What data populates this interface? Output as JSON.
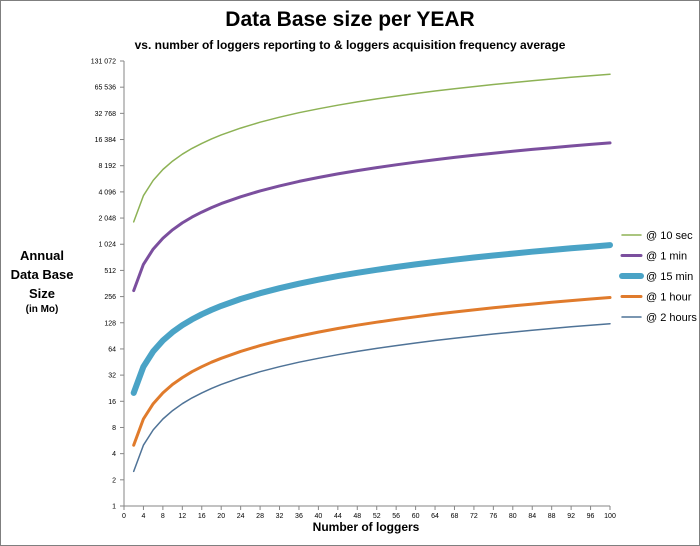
{
  "chart_data": {
    "type": "line",
    "title": "Data Base size per YEAR",
    "subtitle": "vs. number of loggers reporting to & loggers acquisition frequency average",
    "ylabel": "Annual Data Base Size",
    "ylabel_unit": "(in Mo)",
    "xlabel": "Number of loggers",
    "x_scale": "linear",
    "y_scale": "log2",
    "xlim": [
      0,
      100
    ],
    "ylim": [
      1,
      131072
    ],
    "x_ticks": [
      0,
      4,
      8,
      12,
      16,
      20,
      24,
      28,
      32,
      36,
      40,
      44,
      48,
      52,
      56,
      60,
      64,
      68,
      72,
      76,
      80,
      84,
      88,
      92,
      96,
      100
    ],
    "y_ticks": [
      {
        "value": 1,
        "label": "1"
      },
      {
        "value": 2,
        "label": "2"
      },
      {
        "value": 4,
        "label": "4"
      },
      {
        "value": 8,
        "label": "8"
      },
      {
        "value": 16,
        "label": "16"
      },
      {
        "value": 32,
        "label": "32"
      },
      {
        "value": 64,
        "label": "64"
      },
      {
        "value": 128,
        "label": "128"
      },
      {
        "value": 256,
        "label": "256"
      },
      {
        "value": 512,
        "label": "512"
      },
      {
        "value": 1024,
        "label": "1 024"
      },
      {
        "value": 2048,
        "label": "2 048"
      },
      {
        "value": 4096,
        "label": "4 096"
      },
      {
        "value": 8192,
        "label": "8 192"
      },
      {
        "value": 16384,
        "label": "16 384"
      },
      {
        "value": 32768,
        "label": "32 768"
      },
      {
        "value": 65536,
        "label": "65 536"
      },
      {
        "value": 131072,
        "label": "131 072"
      }
    ],
    "grid": false,
    "legend_position": "right",
    "x": [
      2,
      4,
      6,
      8,
      10,
      12,
      14,
      16,
      18,
      20,
      24,
      28,
      32,
      36,
      40,
      44,
      48,
      52,
      56,
      60,
      64,
      68,
      72,
      76,
      80,
      84,
      88,
      92,
      96,
      100
    ],
    "series": [
      {
        "name": "@ 10 sec",
        "color": "#8db255",
        "weight": "thin",
        "values": [
          1850,
          3700,
          5550,
          7400,
          9250,
          11100,
          12950,
          14800,
          16650,
          18500,
          22200,
          25900,
          29600,
          33300,
          37000,
          40700,
          44400,
          48100,
          51800,
          55500,
          59200,
          62900,
          66600,
          70300,
          74000,
          77700,
          81400,
          85100,
          88800,
          92500
        ]
      },
      {
        "name": "@ 1 min",
        "color": "#7b4f9e",
        "weight": "medium",
        "values": [
          300,
          600,
          900,
          1200,
          1500,
          1800,
          2100,
          2400,
          2700,
          3000,
          3600,
          4200,
          4800,
          5400,
          6000,
          6600,
          7200,
          7800,
          8400,
          9000,
          9600,
          10200,
          10800,
          11400,
          12000,
          12600,
          13200,
          13800,
          14400,
          15000
        ]
      },
      {
        "name": "@ 15 min",
        "color": "#4aa3c6",
        "weight": "thick",
        "values": [
          20,
          40,
          60,
          80,
          100,
          120,
          140,
          160,
          180,
          200,
          240,
          280,
          320,
          360,
          400,
          440,
          480,
          520,
          560,
          600,
          640,
          680,
          720,
          760,
          800,
          840,
          880,
          920,
          960,
          1000
        ]
      },
      {
        "name": "@ 1 hour",
        "color": "#e07b2c",
        "weight": "medium",
        "values": [
          5,
          10,
          15,
          20,
          25,
          30,
          35,
          40,
          45,
          50,
          60,
          70,
          80,
          90,
          100,
          110,
          120,
          130,
          140,
          150,
          160,
          170,
          180,
          190,
          200,
          210,
          220,
          230,
          240,
          250
        ]
      },
      {
        "name": "@ 2 hours",
        "color": "#4f7397",
        "weight": "thin",
        "values": [
          2.5,
          5,
          7.5,
          10,
          12.5,
          15,
          17.5,
          20,
          22.5,
          25,
          30,
          35,
          40,
          45,
          50,
          55,
          60,
          65,
          70,
          75,
          80,
          85,
          90,
          95,
          100,
          105,
          110,
          115,
          120,
          125
        ]
      }
    ]
  }
}
